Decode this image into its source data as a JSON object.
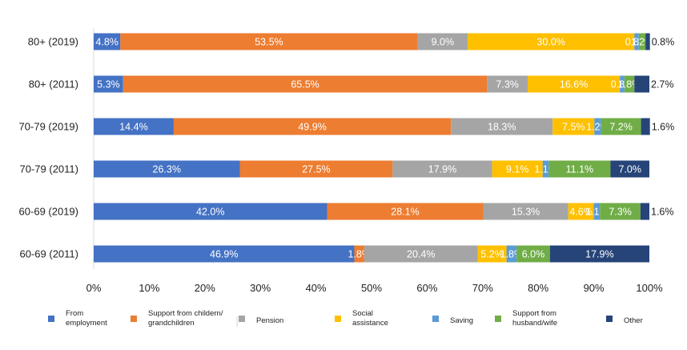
{
  "chart_data": {
    "type": "bar",
    "orientation": "horizontal",
    "stacked": "percent",
    "categories": [
      "80+ (2019)",
      "80+ (2011)",
      "70-79 (2019)",
      "70-79 (2011)",
      "60-69 (2019)",
      "60-69 (2011)"
    ],
    "series": [
      {
        "name": "From employment",
        "color": "#4472c4",
        "values": [
          4.8,
          5.3,
          14.4,
          26.3,
          42.0,
          46.9
        ],
        "labels": [
          "4.8%",
          "5.3%",
          "14.4%",
          "26.3%",
          "42.0%",
          "46.9%"
        ]
      },
      {
        "name": "Support from childern/ grandchildren",
        "color": "#ed7d31",
        "values": [
          53.5,
          65.5,
          49.9,
          27.5,
          28.1,
          1.8
        ],
        "labels": [
          "53.5%",
          "65.5%",
          "49.9%",
          "27.5%",
          "28.1%",
          "1.8%"
        ]
      },
      {
        "name": "Pension",
        "color": "#a5a5a5",
        "values": [
          9.0,
          7.3,
          18.3,
          17.9,
          15.3,
          20.4
        ],
        "labels": [
          "9.0%",
          "7.3%",
          "18.3%",
          "17.9%",
          "15.3%",
          "20.4%"
        ]
      },
      {
        "name": "Social assistance",
        "color": "#ffc000",
        "values": [
          30.0,
          16.6,
          7.5,
          9.1,
          4.6,
          5.2
        ],
        "labels": [
          "30.0%",
          "16.6%",
          "7.5%",
          "9.1%",
          "4.6%",
          "5.2%"
        ]
      },
      {
        "name": "Saving",
        "color": "#5b9bd5",
        "values": [
          0.8,
          0.8,
          1.2,
          1.1,
          1.1,
          1.8
        ],
        "labels": [
          "0.8%",
          "0.8%",
          "1.2%",
          "1.1%",
          "1.1%",
          "1.8%"
        ]
      },
      {
        "name": "Support from husband/wife",
        "color": "#70ad47",
        "values": [
          1.2,
          1.8,
          7.2,
          11.1,
          7.3,
          6.0
        ],
        "labels": [
          "1.2%",
          "1.8%",
          "7.2%",
          "11.1%",
          "7.3%",
          "6.0%"
        ]
      },
      {
        "name": "Other",
        "color": "#264478",
        "values": [
          0.8,
          2.7,
          1.6,
          7.0,
          1.6,
          17.9
        ],
        "labels": [
          "0.8%",
          "2.7%",
          "1.6%",
          "7.0%",
          "1.6%",
          "17.9%"
        ]
      }
    ],
    "x_ticks": [
      "0%",
      "10%",
      "20%",
      "30%",
      "40%",
      "50%",
      "60%",
      "70%",
      "80%",
      "90%",
      "100%"
    ],
    "xlim": [
      0,
      100
    ],
    "title": "",
    "xlabel": "",
    "ylabel": "",
    "grid": false,
    "legend": "bottom"
  }
}
